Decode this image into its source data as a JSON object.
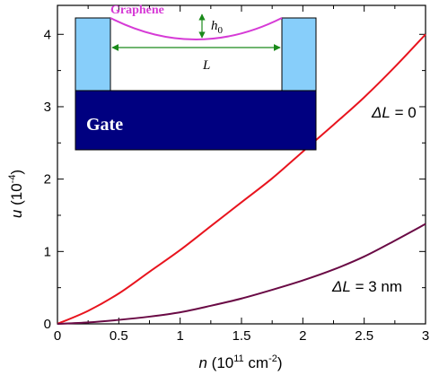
{
  "chart_data": {
    "type": "line",
    "title": "",
    "xlabel": {
      "var": "n",
      "pre": " (10",
      "exp": "11",
      "mid": " cm",
      "exp2": "-2",
      "post": ")"
    },
    "ylabel": {
      "var": "u",
      "pre": " (10",
      "exp": "-4",
      "post": ")"
    },
    "xlim": [
      0,
      3
    ],
    "ylim": [
      0,
      4.4
    ],
    "x_ticks": [
      0,
      0.5,
      1,
      1.5,
      2,
      2.5,
      3
    ],
    "x_tick_labels": [
      "0",
      "0.5",
      "1",
      "1.5",
      "2",
      "2.5",
      "3"
    ],
    "y_ticks": [
      0,
      1,
      2,
      3,
      4
    ],
    "y_tick_labels": [
      "0",
      "1",
      "2",
      "3",
      "4"
    ],
    "grid": false,
    "series": [
      {
        "name": "ΔL = 0",
        "label_var": "ΔL",
        "label_rest": " = 0",
        "color": "#e8141e",
        "x": [
          0,
          0.25,
          0.5,
          0.75,
          1,
          1.25,
          1.5,
          1.75,
          2,
          2.25,
          2.5,
          2.75,
          3
        ],
        "y": [
          0,
          0.18,
          0.42,
          0.72,
          1.02,
          1.35,
          1.68,
          2.01,
          2.38,
          2.75,
          3.13,
          3.55,
          4.0
        ]
      },
      {
        "name": "ΔL = 3 nm",
        "label_var": "ΔL",
        "label_rest": " = 3 nm",
        "color": "#6a0a45",
        "x": [
          0,
          0.25,
          0.5,
          0.75,
          1,
          1.25,
          1.5,
          1.75,
          2,
          2.25,
          2.5,
          2.75,
          3
        ],
        "y": [
          0,
          0.02,
          0.055,
          0.1,
          0.16,
          0.25,
          0.35,
          0.47,
          0.6,
          0.75,
          0.93,
          1.15,
          1.38
        ]
      }
    ],
    "inset": {
      "graphene_label": "Graphene",
      "gate_label": "Gate",
      "h0_var": "h",
      "h0_sub": "0",
      "length_label": "L",
      "colors": {
        "gate": "#000080",
        "pillar": "#87cefa",
        "graphene": "#d63bd6",
        "arrow": "#1a8a1a"
      }
    }
  }
}
